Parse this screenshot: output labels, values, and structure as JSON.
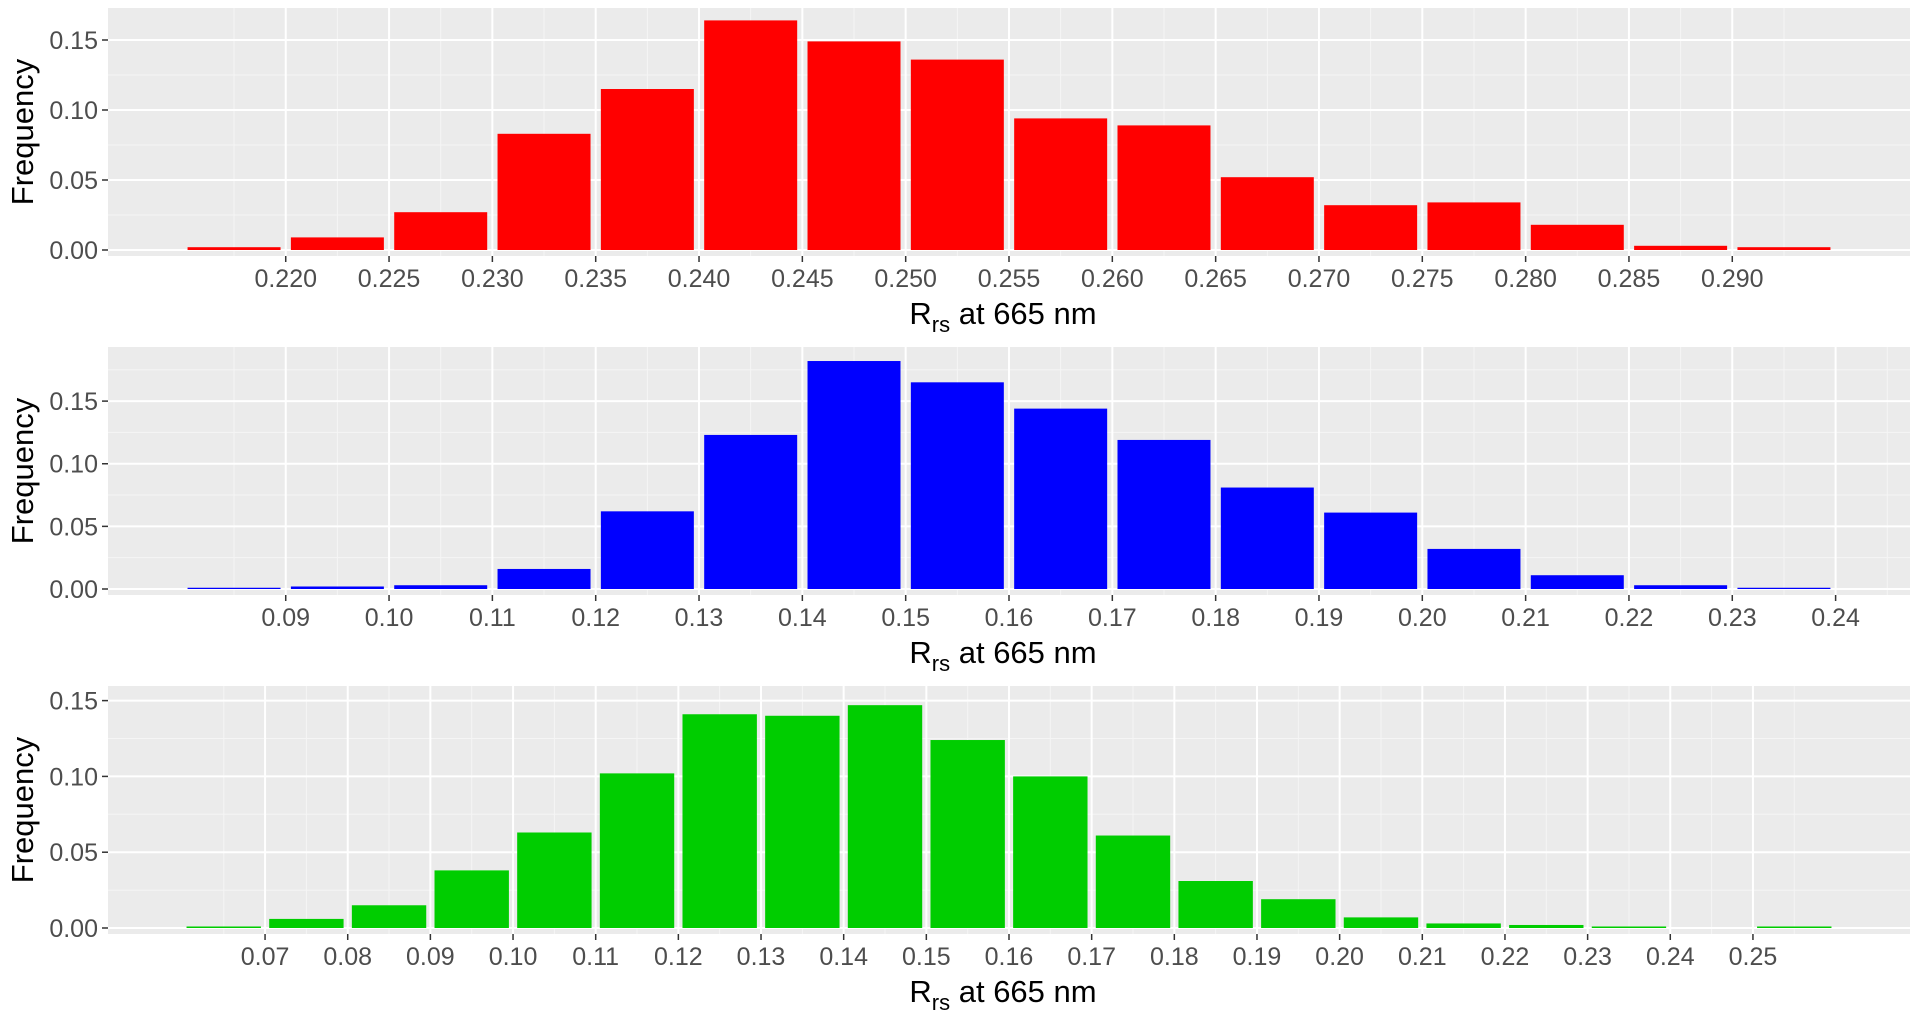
{
  "chart_data": [
    {
      "type": "bar",
      "color": "#ff0000",
      "ylabel": "Frequency",
      "xlabel_main": "R",
      "xlabel_sub": "rs",
      "xlabel_rest": " at 665 nm",
      "ylim": [
        0,
        0.17
      ],
      "y_ticks": [
        0.0,
        0.05,
        0.1,
        0.15
      ],
      "y_tick_labels": [
        "0.00",
        "0.05",
        "0.10",
        "0.15"
      ],
      "x_ticks": [
        0.22,
        0.225,
        0.23,
        0.235,
        0.24,
        0.245,
        0.25,
        0.255,
        0.26,
        0.265,
        0.27,
        0.275,
        0.28,
        0.285,
        0.29
      ],
      "x_tick_labels": [
        "0.220",
        "0.225",
        "0.230",
        "0.235",
        "0.240",
        "0.245",
        "0.250",
        "0.255",
        "0.260",
        "0.265",
        "0.270",
        "0.275",
        "0.280",
        "0.285",
        "0.290"
      ],
      "bin_width": 0.005,
      "x": [
        0.2175,
        0.2225,
        0.2275,
        0.2325,
        0.2375,
        0.2425,
        0.2475,
        0.2525,
        0.2575,
        0.2625,
        0.2675,
        0.2725,
        0.2775,
        0.2825,
        0.2875,
        0.2925
      ],
      "values": [
        0.002,
        0.009,
        0.027,
        0.083,
        0.115,
        0.164,
        0.149,
        0.136,
        0.094,
        0.089,
        0.052,
        0.032,
        0.034,
        0.018,
        0.003,
        0.002
      ]
    },
    {
      "type": "bar",
      "color": "#0000ff",
      "ylabel": "Frequency",
      "xlabel_main": "R",
      "xlabel_sub": "rs",
      "xlabel_rest": " at 665 nm",
      "ylim": [
        0,
        0.19
      ],
      "y_ticks": [
        0.0,
        0.05,
        0.1,
        0.15
      ],
      "y_tick_labels": [
        "0.00",
        "0.05",
        "0.10",
        "0.15"
      ],
      "x_ticks": [
        0.09,
        0.1,
        0.11,
        0.12,
        0.13,
        0.14,
        0.15,
        0.16,
        0.17,
        0.18,
        0.19,
        0.2,
        0.21,
        0.22,
        0.23,
        0.24
      ],
      "x_tick_labels": [
        "0.09",
        "0.10",
        "0.11",
        "0.12",
        "0.13",
        "0.14",
        "0.15",
        "0.16",
        "0.17",
        "0.18",
        "0.19",
        "0.20",
        "0.21",
        "0.22",
        "0.23",
        "0.24"
      ],
      "bin_width": 0.01,
      "x": [
        0.085,
        0.095,
        0.105,
        0.115,
        0.125,
        0.135,
        0.145,
        0.155,
        0.165,
        0.175,
        0.185,
        0.195,
        0.205,
        0.215,
        0.225,
        0.235
      ],
      "values": [
        0.001,
        0.002,
        0.003,
        0.016,
        0.062,
        0.123,
        0.182,
        0.165,
        0.144,
        0.119,
        0.081,
        0.061,
        0.032,
        0.011,
        0.003,
        0.001
      ]
    },
    {
      "type": "bar",
      "color": "#00cd00",
      "ylabel": "Frequency",
      "xlabel_main": "R",
      "xlabel_sub": "rs",
      "xlabel_rest": " at 665 nm",
      "ylim": [
        0,
        0.157
      ],
      "y_ticks": [
        0.0,
        0.05,
        0.1,
        0.15
      ],
      "y_tick_labels": [
        "0.00",
        "0.05",
        "0.10",
        "0.15"
      ],
      "x_ticks": [
        0.07,
        0.08,
        0.09,
        0.1,
        0.11,
        0.12,
        0.13,
        0.14,
        0.15,
        0.16,
        0.17,
        0.18,
        0.19,
        0.2,
        0.21,
        0.22,
        0.23,
        0.24,
        0.25
      ],
      "x_tick_labels": [
        "0.07",
        "0.08",
        "0.09",
        "0.10",
        "0.11",
        "0.12",
        "0.13",
        "0.14",
        "0.15",
        "0.16",
        "0.17",
        "0.18",
        "0.19",
        "0.20",
        "0.21",
        "0.22",
        "0.23",
        "0.24",
        "0.25"
      ],
      "bin_width": 0.01,
      "x": [
        0.065,
        0.075,
        0.085,
        0.095,
        0.105,
        0.115,
        0.125,
        0.135,
        0.145,
        0.155,
        0.165,
        0.175,
        0.185,
        0.195,
        0.205,
        0.215,
        0.225,
        0.235,
        0.245,
        0.255
      ],
      "values": [
        0.001,
        0.006,
        0.015,
        0.038,
        0.063,
        0.102,
        0.141,
        0.14,
        0.147,
        0.124,
        0.1,
        0.061,
        0.031,
        0.019,
        0.007,
        0.003,
        0.002,
        0.001,
        0.0,
        0.001
      ]
    }
  ]
}
